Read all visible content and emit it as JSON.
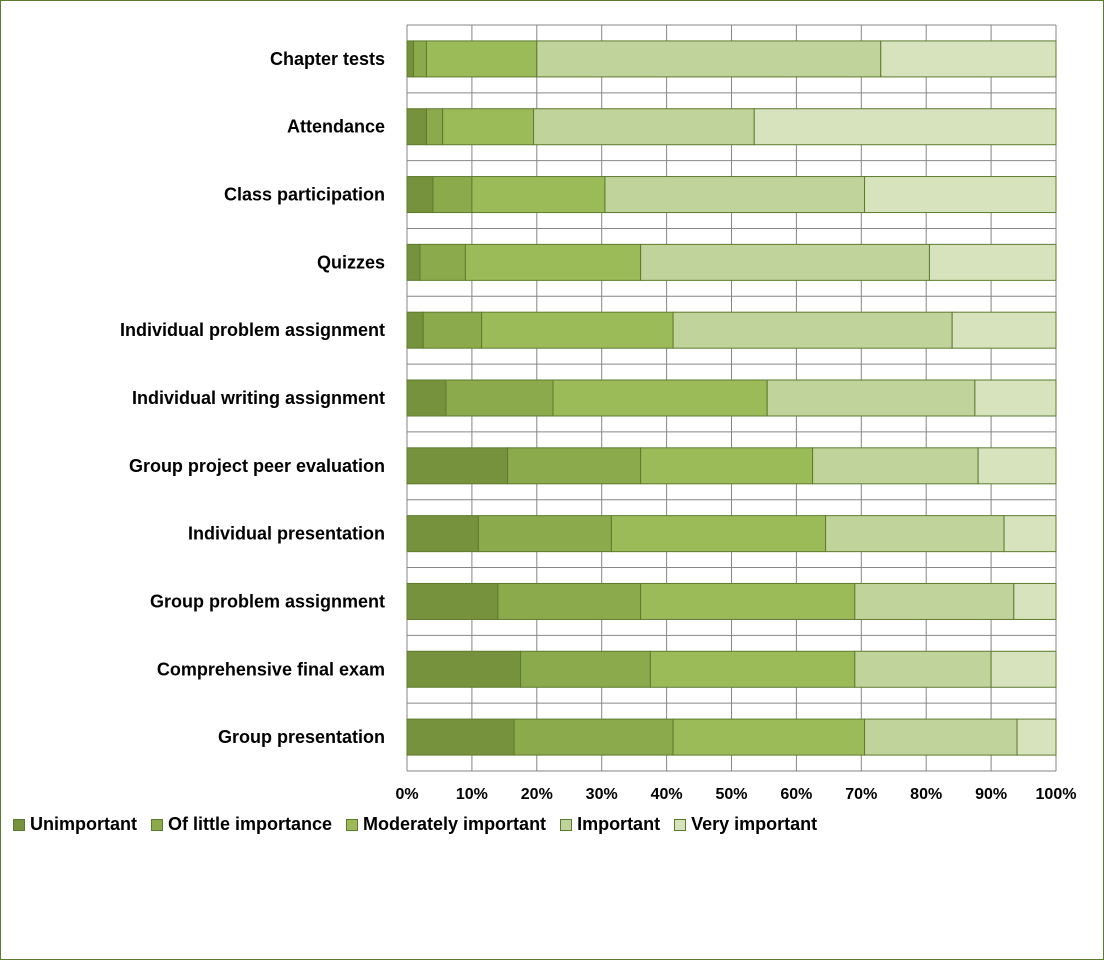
{
  "chart_data": {
    "type": "bar",
    "orientation": "horizontal",
    "stacked": true,
    "percent": true,
    "categories": [
      "Chapter tests",
      "Attendance",
      "Class participation",
      "Quizzes",
      "Individual problem assignment",
      "Individual writing assignment",
      "Group project peer evaluation",
      "Individual presentation",
      "Group problem assignment",
      "Comprehensive final exam",
      "Group presentation"
    ],
    "series": [
      {
        "name": "Unimportant",
        "color": "#76923c",
        "values": [
          1,
          3,
          4,
          2,
          2.5,
          6,
          15.5,
          11,
          14,
          17.5,
          16.5
        ]
      },
      {
        "name": "Of little importance",
        "color": "#8aaa4c",
        "values": [
          2,
          2.5,
          6,
          7,
          9,
          16.5,
          20.5,
          20.5,
          22,
          20,
          24.5
        ]
      },
      {
        "name": "Moderately important",
        "color": "#9bbb59",
        "values": [
          17,
          14,
          20.5,
          27,
          29.5,
          33,
          26.5,
          33,
          33,
          31.5,
          29.5
        ]
      },
      {
        "name": "Important",
        "color": "#bfd39a",
        "values": [
          53,
          34,
          40,
          44.5,
          43,
          32,
          25.5,
          27.5,
          24.5,
          21,
          23.5
        ]
      },
      {
        "name": "Very important",
        "color": "#d6e3bc",
        "values": [
          27,
          46.5,
          29.5,
          19.5,
          16,
          12.5,
          12,
          8,
          6.5,
          10,
          6
        ]
      }
    ],
    "xticks": [
      "0%",
      "10%",
      "20%",
      "30%",
      "40%",
      "50%",
      "60%",
      "70%",
      "80%",
      "90%",
      "100%"
    ],
    "xlim": [
      0,
      100
    ],
    "grid": true,
    "legend": "bottom",
    "title": "",
    "xlabel": "",
    "ylabel": ""
  }
}
